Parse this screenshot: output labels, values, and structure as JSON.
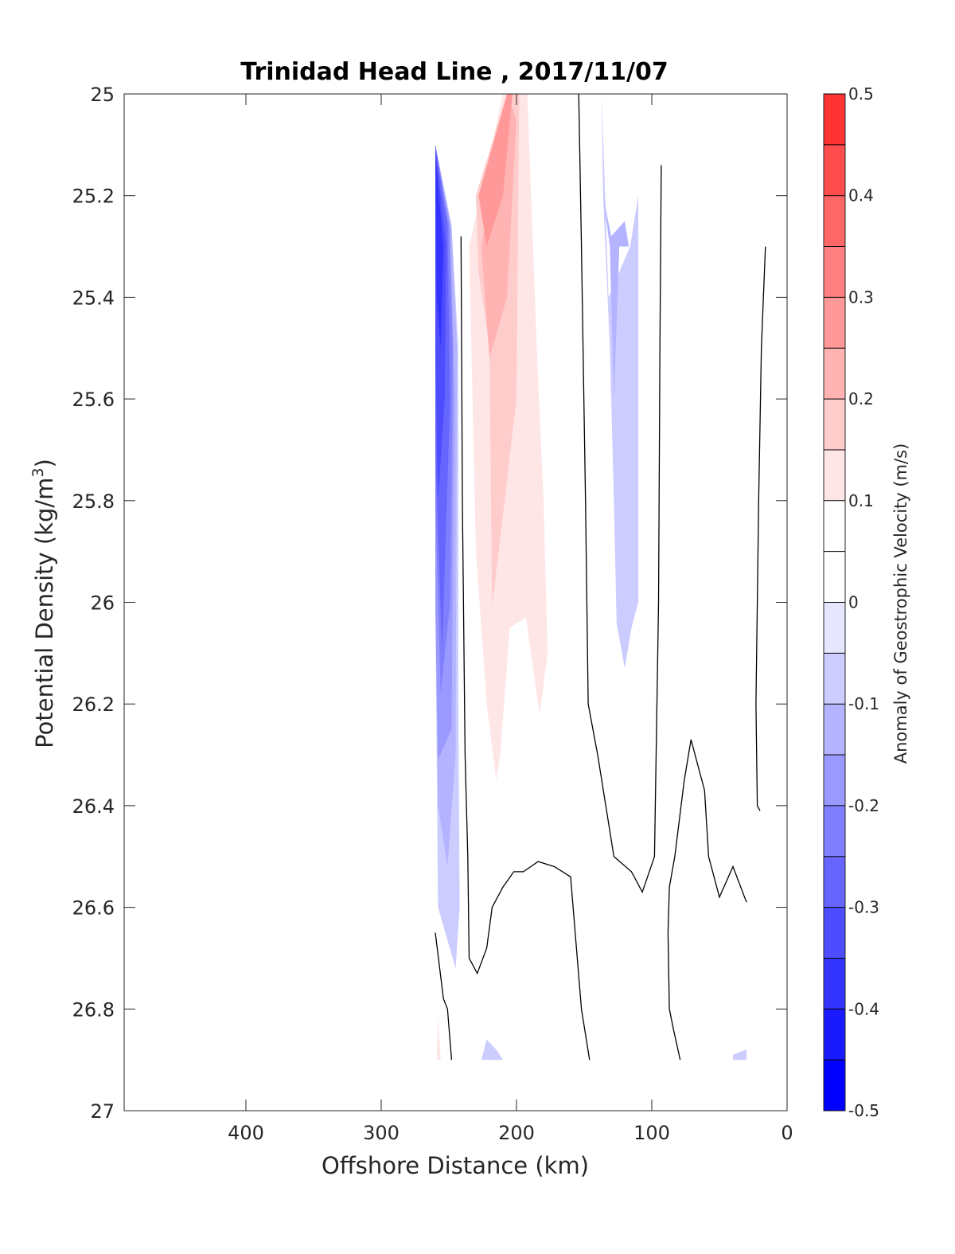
{
  "chart_data": {
    "type": "contour",
    "title": "Trinidad Head Line , 2017/11/07",
    "xlabel": "Offshore Distance (km)",
    "ylabel": "Potential Density (kg/m",
    "ylabel_sup": "3",
    "ylabel_close": ")",
    "xlim": [
      490,
      0
    ],
    "x_reversed": true,
    "ylim": [
      25,
      27
    ],
    "y_reversed": true,
    "x_ticks": [
      400,
      300,
      200,
      100,
      0
    ],
    "y_ticks": [
      25,
      25.2,
      25.4,
      25.6,
      25.8,
      26,
      26.2,
      26.4,
      26.6,
      26.8,
      27
    ],
    "y_tick_labels": [
      "25",
      "25.2",
      "25.4",
      "25.6",
      "25.8",
      "26",
      "26.2",
      "26.4",
      "26.6",
      "26.8",
      "27"
    ],
    "colorbar": {
      "label": "Anomaly of Geostrophic Velocity (m/s)",
      "limits": [
        -0.5,
        0.5
      ],
      "ticks": [
        -0.5,
        -0.4,
        -0.3,
        -0.2,
        -0.1,
        0,
        0.1,
        0.2,
        0.3,
        0.4,
        0.5
      ],
      "tick_labels": [
        "-0.5",
        "-0.4",
        "-0.3",
        "-0.2",
        "-0.1",
        "0",
        "0.1",
        "0.2",
        "0.3",
        "0.4",
        "0.5"
      ],
      "levels": [
        -0.5,
        -0.45,
        -0.4,
        -0.35,
        -0.3,
        -0.25,
        -0.2,
        -0.15,
        -0.1,
        -0.05,
        0,
        0.05,
        0.1,
        0.15,
        0.2,
        0.25,
        0.3,
        0.35,
        0.4,
        0.45,
        0.5
      ],
      "colors": [
        "#0000ff",
        "#1a1aff",
        "#3333ff",
        "#4d4dff",
        "#6666ff",
        "#8080ff",
        "#9999ff",
        "#b3b3ff",
        "#ccccff",
        "#e6e6ff",
        "#ffffff",
        "#ffffff",
        "#ffe6e6",
        "#ffcccc",
        "#ffb3b3",
        "#ff9999",
        "#ff8080",
        "#ff6666",
        "#ff4d4d",
        "#ff3333",
        "#ff1a1a",
        "#ff0000"
      ]
    },
    "filled_regions": [
      {
        "name": "neg-01",
        "value": -0.075,
        "points": [
          [
            260,
            25.1
          ],
          [
            248,
            25.26
          ],
          [
            243,
            25.5
          ],
          [
            243,
            26.2
          ],
          [
            242,
            26.6
          ],
          [
            245,
            26.72
          ],
          [
            258,
            26.6
          ],
          [
            260,
            26.0
          ]
        ]
      },
      {
        "name": "neg-02",
        "value": -0.125,
        "points": [
          [
            260,
            25.1
          ],
          [
            248,
            25.26
          ],
          [
            244,
            25.5
          ],
          [
            245,
            26.3
          ],
          [
            251,
            26.52
          ],
          [
            258,
            26.4
          ],
          [
            260,
            26.0
          ]
        ]
      },
      {
        "name": "neg-03",
        "value": -0.175,
        "points": [
          [
            260,
            25.1
          ],
          [
            249,
            25.26
          ],
          [
            246,
            25.6
          ],
          [
            248,
            26.25
          ],
          [
            258,
            26.31
          ],
          [
            260,
            26.0
          ]
        ]
      },
      {
        "name": "neg-04",
        "value": -0.225,
        "points": [
          [
            260,
            25.1
          ],
          [
            250,
            25.26
          ],
          [
            247,
            25.5
          ],
          [
            249,
            26.0
          ],
          [
            256,
            26.18
          ],
          [
            260,
            25.8
          ]
        ]
      },
      {
        "name": "neg-05",
        "value": -0.275,
        "points": [
          [
            260,
            25.1
          ],
          [
            251,
            25.26
          ],
          [
            249,
            25.6
          ],
          [
            255,
            26.1
          ],
          [
            260,
            25.7
          ]
        ]
      },
      {
        "name": "neg-06",
        "value": -0.325,
        "points": [
          [
            260,
            25.1
          ],
          [
            252,
            25.3
          ],
          [
            253,
            25.6
          ],
          [
            258,
            25.8
          ],
          [
            260,
            25.5
          ]
        ]
      },
      {
        "name": "neg-07",
        "value": -0.375,
        "points": [
          [
            260,
            25.12
          ],
          [
            254,
            25.3
          ],
          [
            256,
            25.5
          ],
          [
            259,
            25.4
          ]
        ]
      },
      {
        "name": "neg-08",
        "value": -0.075,
        "points": [
          [
            143,
            25.0
          ],
          [
            137,
            25.0
          ],
          [
            136,
            25.2
          ],
          [
            131,
            25.5
          ],
          [
            128,
            25.8
          ],
          [
            126,
            26.04
          ],
          [
            120,
            26.13
          ],
          [
            115,
            26.05
          ],
          [
            110,
            26.0
          ],
          [
            110,
            25.2
          ],
          [
            116,
            25.3
          ],
          [
            132,
            25.4
          ],
          [
            137,
            25.0
          ]
        ]
      },
      {
        "name": "neg-09",
        "value": -0.125,
        "points": [
          [
            136,
            25.2
          ],
          [
            131,
            25.3
          ],
          [
            128,
            25.6
          ],
          [
            124,
            25.3
          ],
          [
            117,
            25.3
          ],
          [
            120,
            25.25
          ],
          [
            130,
            25.28
          ]
        ]
      },
      {
        "name": "neg-10",
        "value": -0.075,
        "points": [
          [
            226,
            26.9
          ],
          [
            222,
            26.86
          ],
          [
            215,
            26.88
          ],
          [
            210,
            26.9
          ]
        ]
      },
      {
        "name": "neg-11",
        "value": -0.075,
        "points": [
          [
            40,
            26.9
          ],
          [
            40,
            26.89
          ],
          [
            30,
            26.88
          ],
          [
            30,
            26.9
          ]
        ]
      },
      {
        "name": "pos-01",
        "value": 0.075,
        "points": [
          [
            210,
            25.0
          ],
          [
            160,
            25.0
          ],
          [
            160,
            25.6
          ],
          [
            163,
            26.2
          ],
          [
            168,
            26.35
          ],
          [
            200,
            26.56
          ],
          [
            217,
            26.68
          ],
          [
            232,
            26.6
          ],
          [
            233,
            26.3
          ],
          [
            234,
            25.9
          ],
          [
            237,
            25.3
          ]
        ]
      },
      {
        "name": "pos-02",
        "value": 0.125,
        "points": [
          [
            210,
            25.0
          ],
          [
            192,
            25.0
          ],
          [
            185,
            25.5
          ],
          [
            180,
            25.8
          ],
          [
            177,
            26.1
          ],
          [
            183,
            26.22
          ],
          [
            193,
            26.03
          ],
          [
            205,
            26.05
          ],
          [
            212,
            26.3
          ],
          [
            215,
            26.35
          ],
          [
            222,
            26.2
          ],
          [
            230,
            25.9
          ],
          [
            235,
            25.3
          ]
        ]
      },
      {
        "name": "pos-03",
        "value": 0.175,
        "points": [
          [
            207,
            25.0
          ],
          [
            198,
            25.0
          ],
          [
            200,
            25.6
          ],
          [
            218,
            26.01
          ],
          [
            220,
            25.5
          ],
          [
            228,
            25.35
          ],
          [
            230,
            25.2
          ]
        ]
      },
      {
        "name": "pos-04",
        "value": 0.225,
        "points": [
          [
            207,
            25.0
          ],
          [
            200,
            25.05
          ],
          [
            207,
            25.4
          ],
          [
            220,
            25.52
          ],
          [
            226,
            25.3
          ]
        ]
      },
      {
        "name": "pos-05",
        "value": 0.275,
        "points": [
          [
            207,
            25.0
          ],
          [
            203,
            25.0
          ],
          [
            210,
            25.2
          ],
          [
            222,
            25.3
          ],
          [
            228,
            25.2
          ]
        ]
      },
      {
        "name": "pos-06",
        "value": 0.075,
        "points": [
          [
            260,
            26.73
          ],
          [
            257,
            26.9
          ],
          [
            252,
            26.9
          ]
        ]
      },
      {
        "name": "pos-07",
        "value": 0.125,
        "points": [
          [
            260,
            26.73
          ],
          [
            258,
            26.82
          ],
          [
            259,
            26.9
          ],
          [
            256,
            26.9
          ]
        ]
      },
      {
        "name": "pos-08",
        "value": 0.075,
        "points": [
          [
            40,
            25.83
          ],
          [
            42,
            26.0
          ],
          [
            40,
            26.08
          ],
          [
            38,
            26.0
          ]
        ]
      }
    ],
    "zero_contours": [
      {
        "name": "zero-01",
        "points": [
          [
            241,
            25.28
          ],
          [
            240,
            25.8
          ],
          [
            238,
            26.3
          ],
          [
            236,
            26.5
          ],
          [
            235,
            26.7
          ],
          [
            229,
            26.73
          ],
          [
            222,
            26.68
          ],
          [
            218,
            26.6
          ],
          [
            210,
            26.56
          ],
          [
            202,
            26.53
          ],
          [
            195,
            26.53
          ],
          [
            184,
            26.51
          ],
          [
            172,
            26.52
          ],
          [
            160,
            26.54
          ],
          [
            156,
            26.67
          ],
          [
            152,
            26.8
          ],
          [
            146,
            26.9
          ]
        ]
      },
      {
        "name": "zero-02",
        "points": [
          [
            154,
            25.0
          ],
          [
            152,
            25.3
          ],
          [
            149,
            25.8
          ],
          [
            147,
            26.2
          ],
          [
            140,
            26.3
          ],
          [
            128,
            26.5
          ],
          [
            115,
            26.53
          ],
          [
            107,
            26.57
          ],
          [
            98,
            26.5
          ],
          [
            95,
            26.0
          ],
          [
            94,
            25.5
          ],
          [
            93,
            25.14
          ]
        ]
      },
      {
        "name": "zero-03",
        "points": [
          [
            16,
            25.3
          ],
          [
            19,
            25.5
          ],
          [
            21,
            25.8
          ],
          [
            22,
            26.0
          ],
          [
            23,
            26.2
          ],
          [
            22,
            26.4
          ],
          [
            20,
            26.41
          ]
        ]
      },
      {
        "name": "zero-04",
        "points": [
          [
            260,
            26.65
          ],
          [
            254,
            26.78
          ],
          [
            251,
            26.8
          ],
          [
            248,
            26.9
          ]
        ]
      },
      {
        "name": "zero-05",
        "points": [
          [
            79,
            26.9
          ],
          [
            84,
            26.84
          ],
          [
            87,
            26.8
          ],
          [
            88,
            26.65
          ],
          [
            87,
            26.56
          ],
          [
            83,
            26.5
          ],
          [
            76,
            26.35
          ],
          [
            71,
            26.27
          ],
          [
            61,
            26.37
          ],
          [
            58,
            26.5
          ],
          [
            50,
            26.58
          ],
          [
            40,
            26.52
          ],
          [
            30,
            26.59
          ]
        ]
      }
    ]
  }
}
